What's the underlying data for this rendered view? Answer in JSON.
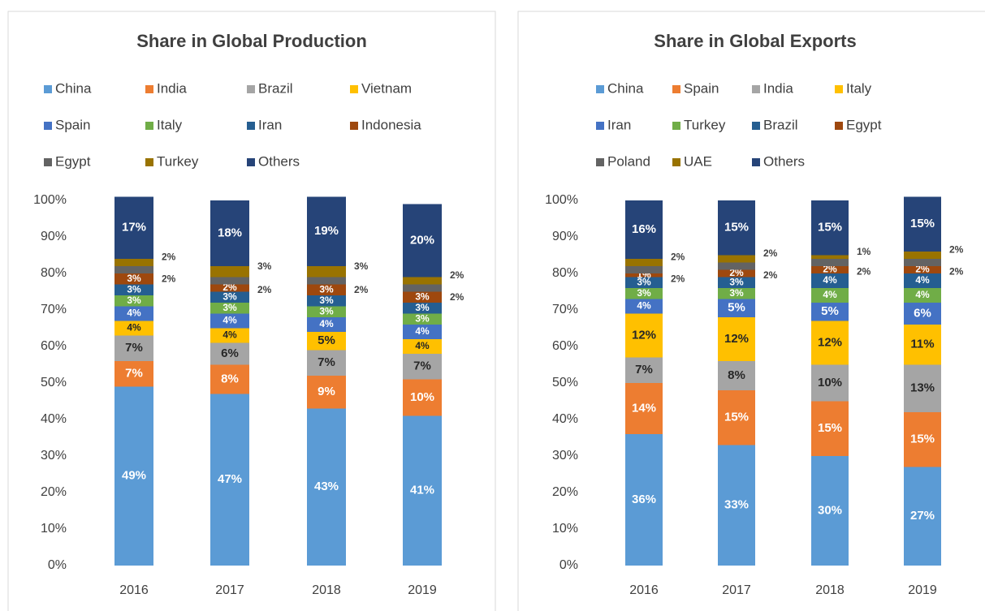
{
  "chart_data": [
    {
      "type": "bar",
      "stacked": true,
      "title": "Share in Global Production",
      "categories": [
        "2016",
        "2017",
        "2018",
        "2019"
      ],
      "ylim": [
        0,
        100
      ],
      "yticks": [
        {
          "value": 0,
          "label": "0%"
        },
        {
          "value": 10,
          "label": "10%"
        },
        {
          "value": 20,
          "label": "20%"
        },
        {
          "value": 30,
          "label": "30%"
        },
        {
          "value": 40,
          "label": "40%"
        },
        {
          "value": 50,
          "label": "50%"
        },
        {
          "value": 60,
          "label": "60%"
        },
        {
          "value": 70,
          "label": "70%"
        },
        {
          "value": 80,
          "label": "80%"
        },
        {
          "value": 90,
          "label": "90%"
        },
        {
          "value": 100,
          "label": "100%"
        }
      ],
      "series": [
        {
          "name": "China",
          "color": "#5B9BD5",
          "values": [
            49,
            47,
            43,
            41
          ],
          "value_labels": [
            "49%",
            "47%",
            "43%",
            "41%"
          ]
        },
        {
          "name": "India",
          "color": "#ED7D31",
          "values": [
            7,
            8,
            9,
            10
          ],
          "value_labels": [
            "7%",
            "8%",
            "9%",
            "10%"
          ]
        },
        {
          "name": "Brazil",
          "color": "#A5A5A5",
          "values": [
            7,
            6,
            7,
            7
          ],
          "value_labels": [
            "7%",
            "6%",
            "7%",
            "7%"
          ]
        },
        {
          "name": "Vietnam",
          "color": "#FFC000",
          "values": [
            4,
            4,
            5,
            4
          ],
          "value_labels": [
            "4%",
            "4%",
            "5%",
            "4%"
          ]
        },
        {
          "name": "Spain",
          "color": "#4472C4",
          "values": [
            4,
            4,
            4,
            4
          ],
          "value_labels": [
            "4%",
            "4%",
            "4%",
            "4%"
          ]
        },
        {
          "name": "Italy",
          "color": "#70AD47",
          "values": [
            3,
            3,
            3,
            3
          ],
          "value_labels": [
            "3%",
            "3%",
            "3%",
            "3%"
          ]
        },
        {
          "name": "Iran",
          "color": "#255E91",
          "values": [
            3,
            3,
            3,
            3
          ],
          "value_labels": [
            "3%",
            "3%",
            "3%",
            "3%"
          ]
        },
        {
          "name": "Indonesia",
          "color": "#9E480E",
          "values": [
            3,
            2,
            3,
            3
          ],
          "value_labels": [
            "3%",
            "2%",
            "3%",
            "3%"
          ]
        },
        {
          "name": "Egypt",
          "color": "#636363",
          "values": [
            2,
            2,
            2,
            2
          ],
          "value_labels": [
            "2%",
            "2%",
            "2%",
            "2%"
          ]
        },
        {
          "name": "Turkey",
          "color": "#997300",
          "values": [
            2,
            3,
            3,
            2
          ],
          "value_labels": [
            "2%",
            "3%",
            "3%",
            "2%"
          ]
        },
        {
          "name": "Others",
          "color": "#264478",
          "values": [
            17,
            18,
            19,
            20
          ],
          "value_labels": [
            "17%",
            "18%",
            "19%",
            "20%"
          ]
        }
      ]
    },
    {
      "type": "bar",
      "stacked": true,
      "title": "Share in Global Exports",
      "categories": [
        "2016",
        "2017",
        "2018",
        "2019"
      ],
      "ylim": [
        0,
        100
      ],
      "yticks": [
        {
          "value": 0,
          "label": "0%"
        },
        {
          "value": 10,
          "label": "10%"
        },
        {
          "value": 20,
          "label": "20%"
        },
        {
          "value": 30,
          "label": "30%"
        },
        {
          "value": 40,
          "label": "40%"
        },
        {
          "value": 50,
          "label": "50%"
        },
        {
          "value": 60,
          "label": "60%"
        },
        {
          "value": 70,
          "label": "70%"
        },
        {
          "value": 80,
          "label": "80%"
        },
        {
          "value": 90,
          "label": "90%"
        },
        {
          "value": 100,
          "label": "100%"
        }
      ],
      "series": [
        {
          "name": "China",
          "color": "#5B9BD5",
          "values": [
            36,
            33,
            30,
            27
          ],
          "value_labels": [
            "36%",
            "33%",
            "30%",
            "27%"
          ]
        },
        {
          "name": "Spain",
          "color": "#ED7D31",
          "values": [
            14,
            15,
            15,
            15
          ],
          "value_labels": [
            "14%",
            "15%",
            "15%",
            "15%"
          ]
        },
        {
          "name": "India",
          "color": "#A5A5A5",
          "values": [
            7,
            8,
            10,
            13
          ],
          "value_labels": [
            "7%",
            "8%",
            "10%",
            "13%"
          ]
        },
        {
          "name": "Italy",
          "color": "#FFC000",
          "values": [
            12,
            12,
            12,
            11
          ],
          "value_labels": [
            "12%",
            "12%",
            "12%",
            "11%"
          ]
        },
        {
          "name": "Iran",
          "color": "#4472C4",
          "values": [
            4,
            5,
            5,
            6
          ],
          "value_labels": [
            "4%",
            "5%",
            "5%",
            "6%"
          ]
        },
        {
          "name": "Turkey",
          "color": "#70AD47",
          "values": [
            3,
            3,
            4,
            4
          ],
          "value_labels": [
            "3%",
            "3%",
            "4%",
            "4%"
          ]
        },
        {
          "name": "Brazil",
          "color": "#255E91",
          "values": [
            3,
            3,
            4,
            4
          ],
          "value_labels": [
            "3%",
            "3%",
            "4%",
            "4%"
          ]
        },
        {
          "name": "Egypt",
          "color": "#9E480E",
          "values": [
            1,
            2,
            2,
            2
          ],
          "value_labels": [
            "1%",
            "2%",
            "2%",
            "2%"
          ]
        },
        {
          "name": "Poland",
          "color": "#636363",
          "values": [
            2,
            2,
            2,
            2
          ],
          "value_labels": [
            "2%",
            "2%",
            "2%",
            "2%"
          ]
        },
        {
          "name": "UAE",
          "color": "#997300",
          "values": [
            2,
            2,
            1,
            2
          ],
          "value_labels": [
            "2%",
            "2%",
            "1%",
            "2%"
          ]
        },
        {
          "name": "Others",
          "color": "#264478",
          "values": [
            16,
            15,
            15,
            15
          ],
          "value_labels": [
            "16%",
            "15%",
            "15%",
            "15%"
          ]
        }
      ]
    }
  ]
}
